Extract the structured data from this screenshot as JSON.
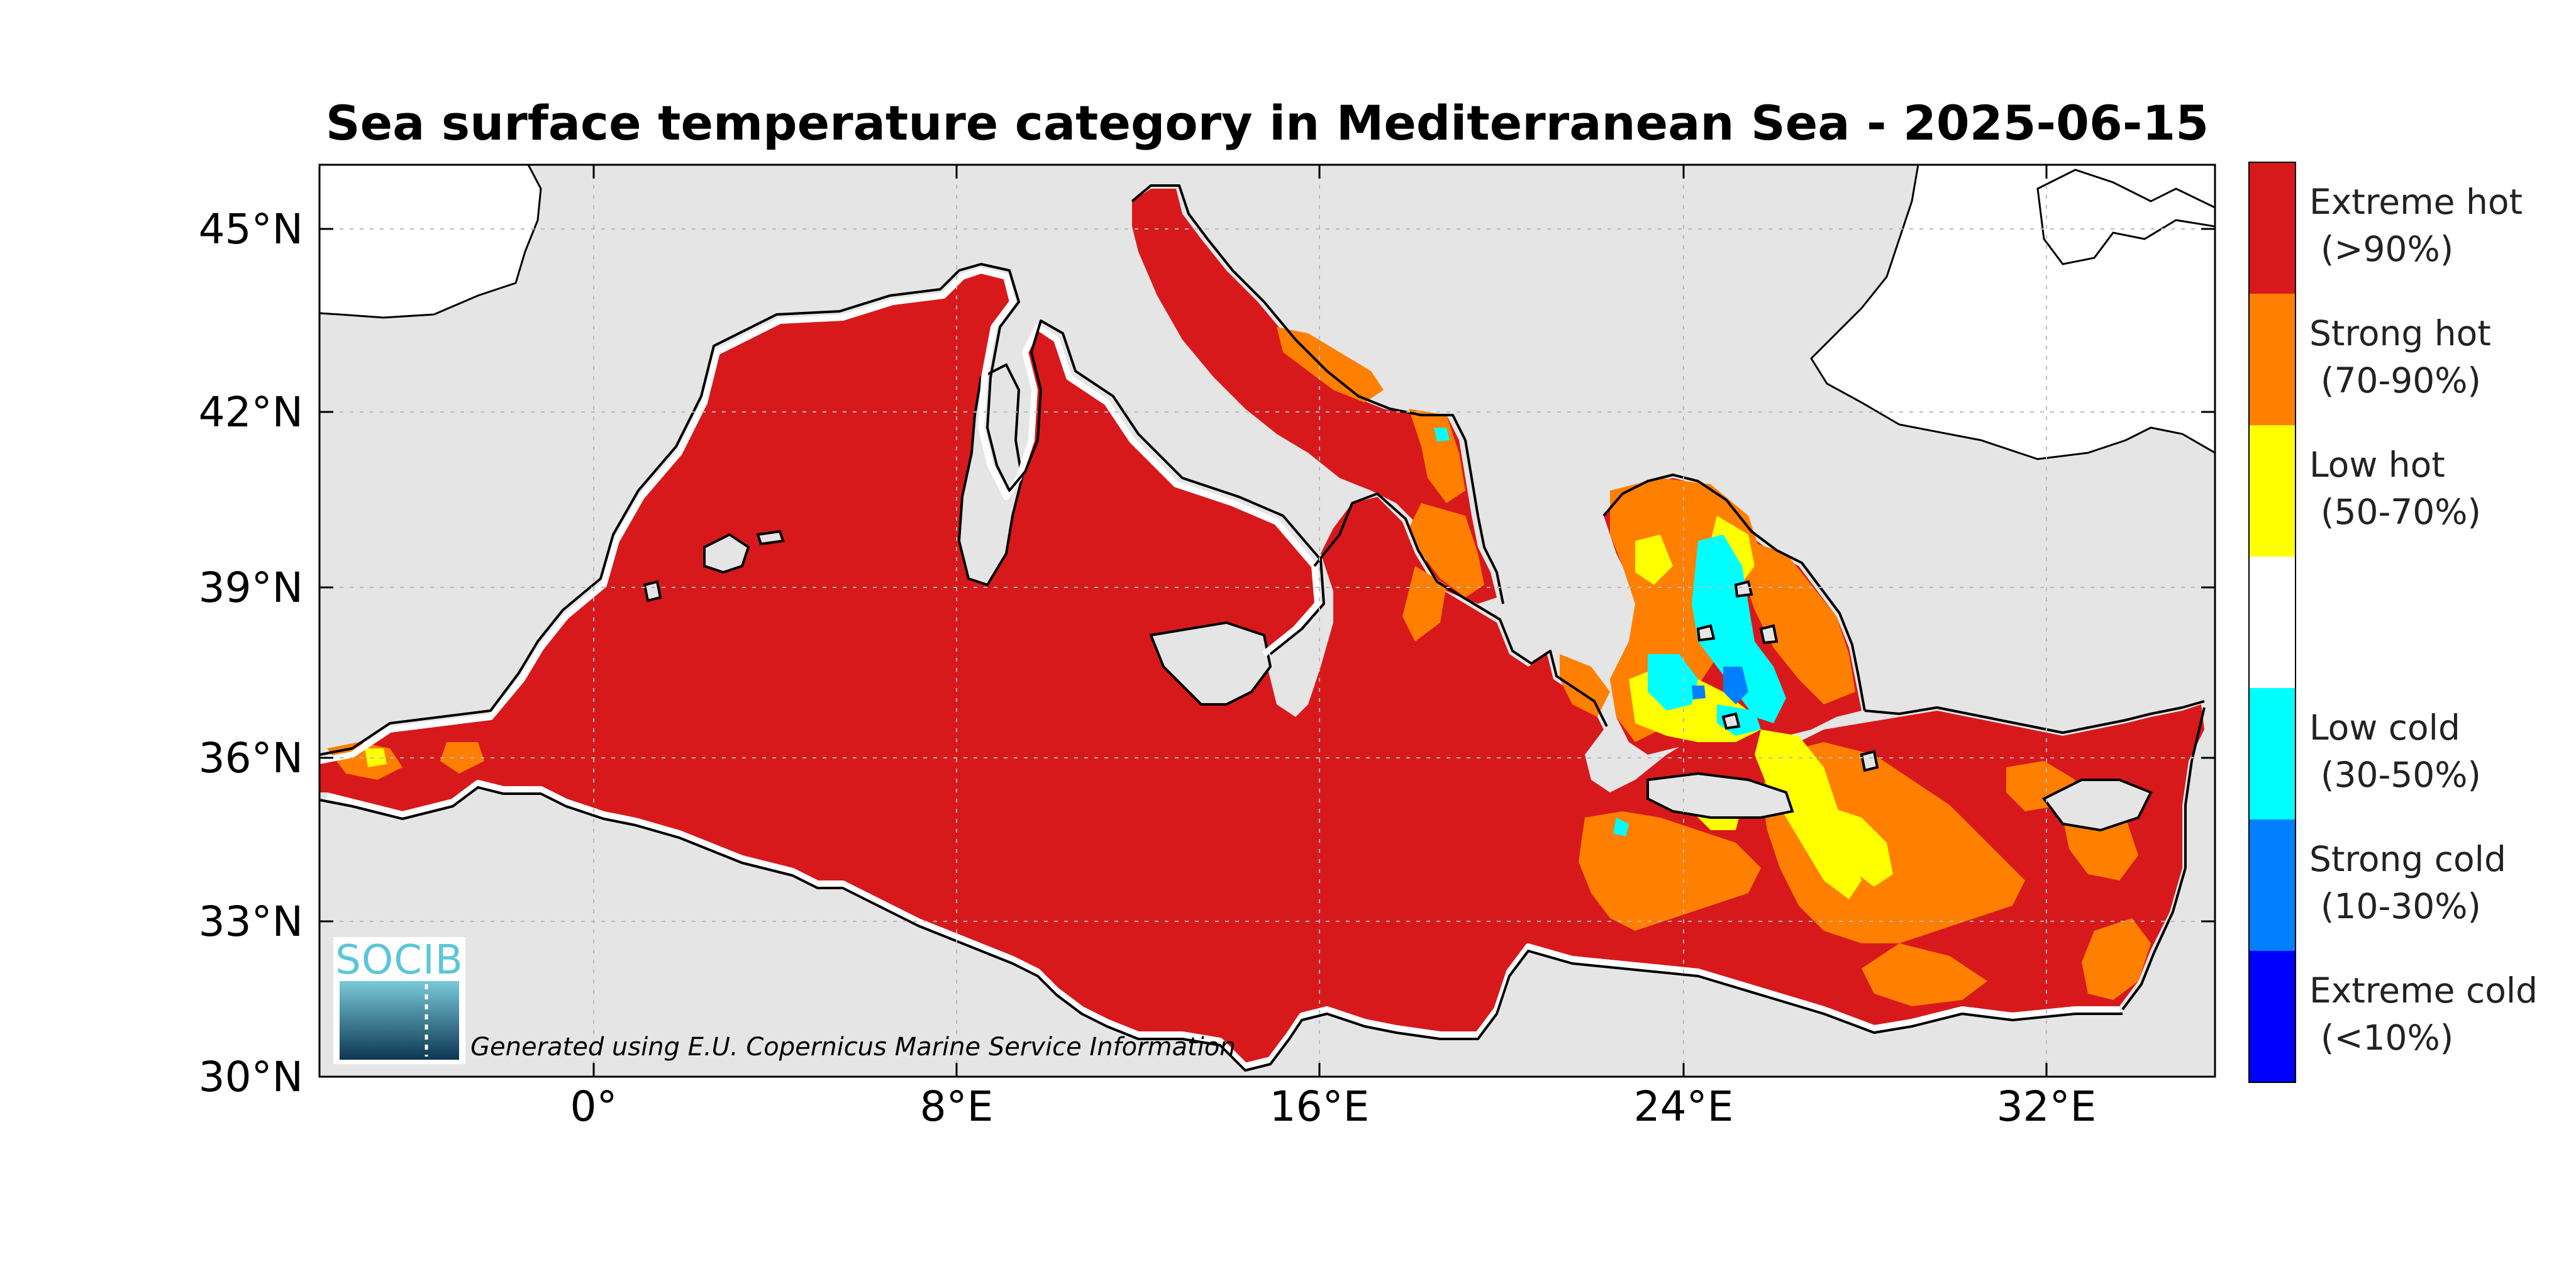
{
  "title": "Sea surface temperature category in Mediterranean Sea - 2025-06-15",
  "axes": {
    "lat_ticks": [
      "45°N",
      "42°N",
      "39°N",
      "36°N",
      "33°N",
      "30°N"
    ],
    "lon_ticks": [
      "0°",
      "8°E",
      "16°E",
      "24°E",
      "32°E"
    ]
  },
  "legend": [
    {
      "label": "Extreme hot",
      "range": "(>90%)",
      "color": "#d7191c"
    },
    {
      "label": "Strong hot",
      "range": "(70-90%)",
      "color": "#ff7f00"
    },
    {
      "label": "Low hot",
      "range": "(50-70%)",
      "color": "#ffff00"
    },
    {
      "label": "",
      "range": "",
      "color": "#ffffff"
    },
    {
      "label": "Low cold",
      "range": "(30-50%)",
      "color": "#00ffff"
    },
    {
      "label": "Strong cold",
      "range": "(10-30%)",
      "color": "#0080ff"
    },
    {
      "label": "Extreme cold",
      "range": "(<10%)",
      "color": "#0000ff"
    }
  ],
  "colors": {
    "land": "#e5e5e5",
    "sea": "#d7191c",
    "outside": "#ffffff"
  },
  "logo": {
    "text": "SOCIB"
  },
  "credit": "Generated using E.U. Copernicus Marine Service Information"
}
